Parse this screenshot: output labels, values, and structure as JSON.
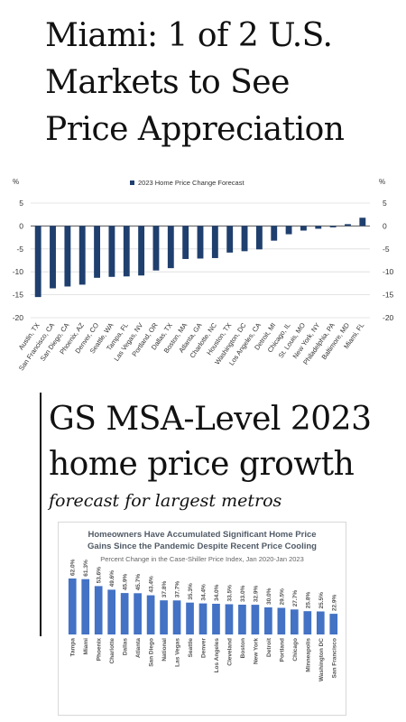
{
  "headline": {
    "line1": "Miami: 1 of 2 U.S.",
    "line2": "Markets to See",
    "line3": "Price Appreciation"
  },
  "section2": {
    "heading_line1": "GS MSA-Level 2023",
    "heading_line2": "home price growth",
    "subheading": "forecast for largest metros"
  },
  "chart_data": [
    {
      "type": "bar",
      "legend": "2023 Home Price Change Forecast",
      "legend_position": "top-center",
      "left_axis_unit": "%",
      "right_axis_unit": "%",
      "ylim": [
        -20,
        5
      ],
      "yticks": [
        5,
        0,
        -5,
        -10,
        -15,
        -20
      ],
      "grid": true,
      "color": "#1f3f6e",
      "categories": [
        "Austin, TX",
        "San Francisco, CA",
        "San Diego, CA",
        "Phoenix, AZ",
        "Denver, CO",
        "Seattle, WA",
        "Tampa, FL",
        "Las Vegas, NV",
        "Portland, OR",
        "Dallas, TX",
        "Boston, MA",
        "Atlanta, GA",
        "Charlotte, NC",
        "Houston, TX",
        "Washington, DC",
        "Los Angeles, CA",
        "Detroit, MI",
        "Chicago, IL",
        "St. Louis, MO",
        "New York, NY",
        "Philadelphia, PA",
        "Baltimore, MD",
        "Miami, FL"
      ],
      "values": [
        -15.5,
        -13.6,
        -13.2,
        -12.8,
        -11.3,
        -11.1,
        -11.0,
        -10.8,
        -9.7,
        -9.2,
        -7.2,
        -7.1,
        -7.0,
        -5.8,
        -5.5,
        -5.1,
        -3.2,
        -1.8,
        -1.0,
        -0.6,
        -0.3,
        0.4,
        1.8
      ]
    },
    {
      "type": "bar",
      "title_line1": "Homeowners Have Accumulated Significant Home Price",
      "title_line2": "Gains Since the Pandemic Despite Recent Price Cooling",
      "subtitle": "Percent Change in the Case-Shiller Price Index, Jan 2020-Jan 2023",
      "grid": false,
      "color": "#4472c4",
      "ylim": [
        0,
        70
      ],
      "categories": [
        "Tampa",
        "Miami",
        "Phoenix",
        "Charlotte",
        "Dallas",
        "Atlanta",
        "San Diego",
        "National",
        "Las Vegas",
        "Seattle",
        "Denver",
        "Los Angeles",
        "Cleveland",
        "Boston",
        "New York",
        "Detroit",
        "Portland",
        "Chicago",
        "Minneapolis",
        "Washington DC",
        "San Francisco"
      ],
      "values": [
        62.0,
        61.3,
        53.6,
        49.6,
        45.9,
        45.7,
        43.4,
        37.8,
        37.7,
        35.3,
        34.4,
        34.0,
        33.5,
        33.0,
        32.9,
        30.0,
        29.5,
        27.7,
        25.8,
        25.5,
        22.9
      ],
      "value_labels": [
        "62.0%",
        "61.3%",
        "53.6%",
        "49.6%",
        "45.9%",
        "45.7%",
        "43.4%",
        "37.8%",
        "37.7%",
        "35.3%",
        "34.4%",
        "34.0%",
        "33.5%",
        "33.0%",
        "32.9%",
        "30.0%",
        "29.5%",
        "27.7%",
        "25.8%",
        "25.5%",
        "22.9%"
      ]
    }
  ]
}
